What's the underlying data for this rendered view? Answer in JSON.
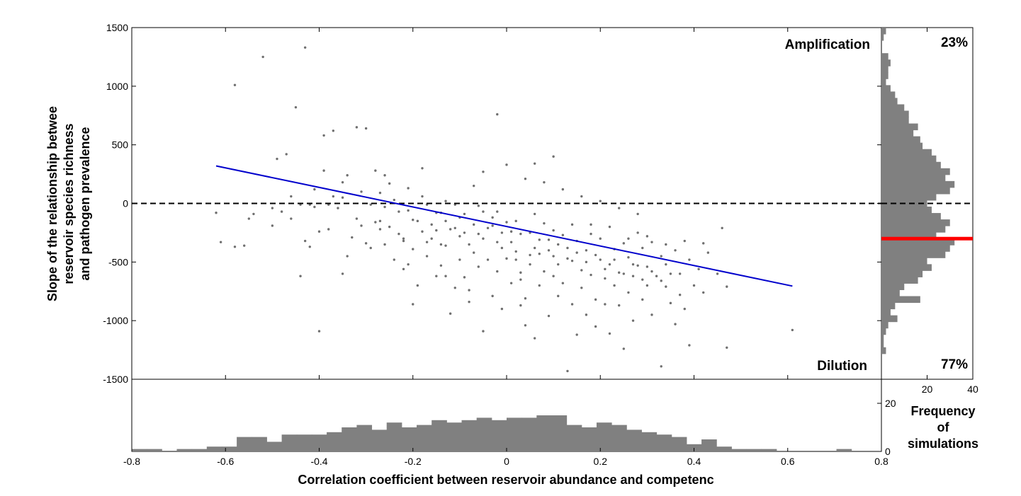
{
  "chart_data": {
    "type": "scatter",
    "xlabel": "Correlation coefficient between reservoir abundance and competenc",
    "ylabel_lines": [
      "Slope of the relationship betwee",
      "reservoir species richness",
      "and pathogen prevalence"
    ],
    "xlim": [
      -0.8,
      0.8
    ],
    "ylim": [
      -1500,
      1500
    ],
    "x_ticks": [
      "-0.8",
      "-0.6",
      "-0.4",
      "-0.2",
      "0",
      "0.2",
      "0.4",
      "0.6",
      "0.8"
    ],
    "y_ticks": [
      "1500",
      "1000",
      "500",
      "0",
      "-500",
      "-1000",
      "-1500"
    ],
    "annotations": {
      "amplification": "Amplification",
      "dilution": "Dilution",
      "pct_above": "23%",
      "pct_below": "77%"
    },
    "reference_line": {
      "y": 0,
      "style": "dashed",
      "color": "#000000"
    },
    "regression_line": {
      "x": [
        -0.62,
        0.61
      ],
      "y": [
        320,
        -705
      ],
      "color": "#0000cc"
    },
    "points": [
      [
        -0.62,
        -80
      ],
      [
        -0.61,
        -330
      ],
      [
        -0.58,
        1010
      ],
      [
        -0.58,
        -370
      ],
      [
        -0.56,
        -360
      ],
      [
        -0.55,
        -130
      ],
      [
        -0.54,
        -90
      ],
      [
        -0.52,
        1250
      ],
      [
        -0.5,
        -190
      ],
      [
        -0.5,
        -40
      ],
      [
        -0.49,
        380
      ],
      [
        -0.48,
        -70
      ],
      [
        -0.47,
        420
      ],
      [
        -0.46,
        -130
      ],
      [
        -0.46,
        60
      ],
      [
        -0.45,
        820
      ],
      [
        -0.44,
        -10
      ],
      [
        -0.44,
        -620
      ],
      [
        -0.43,
        1330
      ],
      [
        -0.43,
        -320
      ],
      [
        -0.42,
        -10
      ],
      [
        -0.42,
        -370
      ],
      [
        -0.41,
        120
      ],
      [
        -0.41,
        -30
      ],
      [
        -0.4,
        -240
      ],
      [
        -0.4,
        -1090
      ],
      [
        -0.39,
        280
      ],
      [
        -0.39,
        580
      ],
      [
        -0.38,
        -220
      ],
      [
        -0.38,
        -10
      ],
      [
        -0.37,
        620
      ],
      [
        -0.37,
        60
      ],
      [
        -0.36,
        -40
      ],
      [
        -0.35,
        180
      ],
      [
        -0.35,
        -600
      ],
      [
        -0.34,
        -450
      ],
      [
        -0.34,
        240
      ],
      [
        -0.33,
        -290
      ],
      [
        -0.32,
        650
      ],
      [
        -0.32,
        -130
      ],
      [
        -0.31,
        -190
      ],
      [
        -0.3,
        640
      ],
      [
        -0.3,
        -340
      ],
      [
        -0.29,
        -10
      ],
      [
        -0.28,
        280
      ],
      [
        -0.28,
        -160
      ],
      [
        -0.27,
        90
      ],
      [
        -0.27,
        -220
      ],
      [
        -0.26,
        240
      ],
      [
        -0.26,
        -350
      ],
      [
        -0.25,
        170
      ],
      [
        -0.24,
        30
      ],
      [
        -0.24,
        -480
      ],
      [
        -0.23,
        -260
      ],
      [
        -0.22,
        -560
      ],
      [
        -0.22,
        -320
      ],
      [
        -0.21,
        -60
      ],
      [
        -0.21,
        130
      ],
      [
        -0.2,
        -140
      ],
      [
        -0.2,
        -390
      ],
      [
        -0.2,
        -860
      ],
      [
        -0.19,
        -700
      ],
      [
        -0.18,
        300
      ],
      [
        -0.18,
        -240
      ],
      [
        -0.17,
        -450
      ],
      [
        -0.17,
        -10
      ],
      [
        -0.16,
        -180
      ],
      [
        -0.16,
        -300
      ],
      [
        -0.15,
        -620
      ],
      [
        -0.15,
        -80
      ],
      [
        -0.14,
        -350
      ],
      [
        -0.14,
        -530
      ],
      [
        -0.13,
        -150
      ],
      [
        -0.13,
        20
      ],
      [
        -0.12,
        -220
      ],
      [
        -0.12,
        -940
      ],
      [
        -0.11,
        -10
      ],
      [
        -0.11,
        -720
      ],
      [
        -0.1,
        -280
      ],
      [
        -0.1,
        -480
      ],
      [
        -0.09,
        -90
      ],
      [
        -0.09,
        -630
      ],
      [
        -0.08,
        -840
      ],
      [
        -0.08,
        -350
      ],
      [
        -0.07,
        150
      ],
      [
        -0.07,
        -420
      ],
      [
        -0.06,
        -260
      ],
      [
        -0.06,
        -540
      ],
      [
        -0.05,
        -70
      ],
      [
        -0.05,
        -1090
      ],
      [
        -0.04,
        -210
      ],
      [
        -0.04,
        -480
      ],
      [
        -0.03,
        -790
      ],
      [
        -0.03,
        -120
      ],
      [
        -0.02,
        -330
      ],
      [
        -0.02,
        -580
      ],
      [
        -0.01,
        -250
      ],
      [
        -0.01,
        -900
      ],
      [
        0.0,
        -470
      ],
      [
        0.0,
        -160
      ],
      [
        0.01,
        -680
      ],
      [
        0.01,
        -240
      ],
      [
        0.02,
        -480
      ],
      [
        0.02,
        -410
      ],
      [
        0.03,
        -650
      ],
      [
        0.03,
        -590
      ],
      [
        0.04,
        -810
      ],
      [
        0.04,
        -1040
      ],
      [
        0.05,
        -250
      ],
      [
        0.05,
        -520
      ],
      [
        0.06,
        -1150
      ],
      [
        0.06,
        -380
      ],
      [
        0.07,
        -700
      ],
      [
        0.07,
        -430
      ],
      [
        0.08,
        -580
      ],
      [
        0.08,
        -170
      ],
      [
        0.09,
        -960
      ],
      [
        0.09,
        -310
      ],
      [
        0.1,
        -620
      ],
      [
        0.1,
        -450
      ],
      [
        0.11,
        -790
      ],
      [
        0.11,
        -520
      ],
      [
        0.12,
        -270
      ],
      [
        0.12,
        -680
      ],
      [
        0.13,
        -380
      ],
      [
        0.13,
        -1430
      ],
      [
        0.14,
        -490
      ],
      [
        0.14,
        -860
      ],
      [
        0.15,
        -320
      ],
      [
        0.15,
        -1120
      ],
      [
        0.16,
        -570
      ],
      [
        0.16,
        -720
      ],
      [
        0.17,
        -400
      ],
      [
        0.17,
        -950
      ],
      [
        0.18,
        -610
      ],
      [
        0.18,
        -180
      ],
      [
        0.19,
        -820
      ],
      [
        0.19,
        -1050
      ],
      [
        0.2,
        -480
      ],
      [
        0.2,
        -300
      ],
      [
        0.21,
        -860
      ],
      [
        0.21,
        -640
      ],
      [
        0.22,
        -520
      ],
      [
        0.22,
        -1110
      ],
      [
        0.23,
        -390
      ],
      [
        0.23,
        -700
      ],
      [
        0.24,
        -590
      ],
      [
        0.24,
        -870
      ],
      [
        0.25,
        -340
      ],
      [
        0.25,
        -1240
      ],
      [
        0.26,
        -460
      ],
      [
        0.26,
        -760
      ],
      [
        0.27,
        -620
      ],
      [
        0.27,
        -1000
      ],
      [
        0.28,
        -530
      ],
      [
        0.28,
        -250
      ],
      [
        0.29,
        -820
      ],
      [
        0.29,
        -380
      ],
      [
        0.3,
        -540
      ],
      [
        0.3,
        -700
      ],
      [
        0.31,
        -330
      ],
      [
        0.31,
        -950
      ],
      [
        0.32,
        -620
      ],
      [
        0.33,
        -450
      ],
      [
        0.33,
        -1390
      ],
      [
        0.34,
        -710
      ],
      [
        0.34,
        -520
      ],
      [
        0.35,
        -850
      ],
      [
        0.36,
        -400
      ],
      [
        0.36,
        -1030
      ],
      [
        0.37,
        -600
      ],
      [
        0.37,
        -780
      ],
      [
        0.38,
        -900
      ],
      [
        0.39,
        -480
      ],
      [
        0.39,
        -1210
      ],
      [
        0.4,
        -700
      ],
      [
        0.41,
        -560
      ],
      [
        0.42,
        -760
      ],
      [
        0.43,
        -420
      ],
      [
        0.45,
        -600
      ],
      [
        0.46,
        -210
      ],
      [
        0.47,
        -710
      ],
      [
        0.47,
        -1230
      ],
      [
        0.61,
        -1080
      ],
      [
        -0.29,
        -380
      ],
      [
        -0.27,
        -150
      ],
      [
        -0.25,
        -200
      ],
      [
        -0.23,
        -70
      ],
      [
        -0.21,
        -520
      ],
      [
        -0.19,
        -150
      ],
      [
        -0.17,
        -330
      ],
      [
        -0.15,
        -230
      ],
      [
        -0.13,
        -360
      ],
      [
        -0.11,
        -210
      ],
      [
        -0.09,
        -250
      ],
      [
        -0.07,
        -180
      ],
      [
        -0.05,
        -300
      ],
      [
        -0.03,
        -190
      ],
      [
        -0.01,
        -380
      ],
      [
        0.01,
        -330
      ],
      [
        0.03,
        -260
      ],
      [
        0.05,
        -440
      ],
      [
        0.07,
        -310
      ],
      [
        0.09,
        -400
      ],
      [
        0.11,
        -350
      ],
      [
        0.13,
        -470
      ],
      [
        0.15,
        -420
      ],
      [
        0.17,
        -500
      ],
      [
        0.19,
        -440
      ],
      [
        0.21,
        -560
      ],
      [
        0.23,
        -480
      ],
      [
        0.25,
        -600
      ],
      [
        0.27,
        -520
      ],
      [
        0.29,
        -650
      ],
      [
        0.31,
        -580
      ],
      [
        0.33,
        -660
      ],
      [
        0.35,
        -600
      ],
      [
        -0.35,
        50
      ],
      [
        -0.31,
        100
      ],
      [
        -0.26,
        -30
      ],
      [
        -0.22,
        -300
      ],
      [
        -0.18,
        60
      ],
      [
        -0.14,
        -80
      ],
      [
        -0.1,
        -120
      ],
      [
        -0.06,
        -20
      ],
      [
        -0.02,
        -70
      ],
      [
        0.02,
        -150
      ],
      [
        0.06,
        -90
      ],
      [
        0.1,
        -230
      ],
      [
        0.14,
        -180
      ],
      [
        0.18,
        -260
      ],
      [
        0.22,
        -200
      ],
      [
        0.26,
        -300
      ],
      [
        0.3,
        -280
      ],
      [
        0.34,
        -350
      ],
      [
        0.38,
        -320
      ],
      [
        0.42,
        -340
      ],
      [
        -0.05,
        270
      ],
      [
        0.0,
        330
      ],
      [
        0.04,
        210
      ],
      [
        0.08,
        180
      ],
      [
        0.12,
        120
      ],
      [
        0.16,
        60
      ],
      [
        0.2,
        20
      ],
      [
        0.24,
        -40
      ],
      [
        0.28,
        -90
      ],
      [
        -0.02,
        760
      ],
      [
        0.06,
        340
      ],
      [
        0.1,
        400
      ],
      [
        -0.13,
        -620
      ],
      [
        -0.08,
        -740
      ],
      [
        0.03,
        -870
      ]
    ]
  },
  "y_histogram": {
    "counts": [
      2,
      1,
      0,
      0,
      3,
      4,
      3,
      3,
      2,
      4,
      6,
      7,
      10,
      12,
      12,
      16,
      14,
      17,
      18,
      22,
      24,
      26,
      30,
      28,
      32,
      30,
      24,
      20,
      22,
      26,
      30,
      28,
      24,
      32,
      30,
      28,
      20,
      22,
      18,
      16,
      10,
      8,
      17,
      6,
      4,
      7,
      3,
      2,
      1,
      1,
      2,
      0,
      0,
      0,
      0
    ],
    "ticks": [
      "20",
      "40"
    ],
    "label_lines": [
      "Frequency",
      "of",
      "simulations"
    ],
    "mean": -300,
    "mean_color": "#ff0000"
  },
  "x_histogram": {
    "counts": [
      1,
      1,
      0,
      1,
      1,
      2,
      2,
      6,
      6,
      4,
      7,
      7,
      7,
      8,
      10,
      11,
      9,
      12,
      10,
      11,
      13,
      12,
      13,
      14,
      13,
      14,
      14,
      15,
      15,
      11,
      10,
      12,
      11,
      9,
      8,
      7,
      6,
      3,
      5,
      2,
      1,
      1,
      1,
      0,
      0,
      0,
      0,
      1,
      0,
      0
    ],
    "ticks": [
      "0",
      "20"
    ]
  },
  "colors": {
    "points": "#6f6f6f",
    "bars": "#808080",
    "regression": "#0000cc",
    "mean": "#ff0000"
  }
}
